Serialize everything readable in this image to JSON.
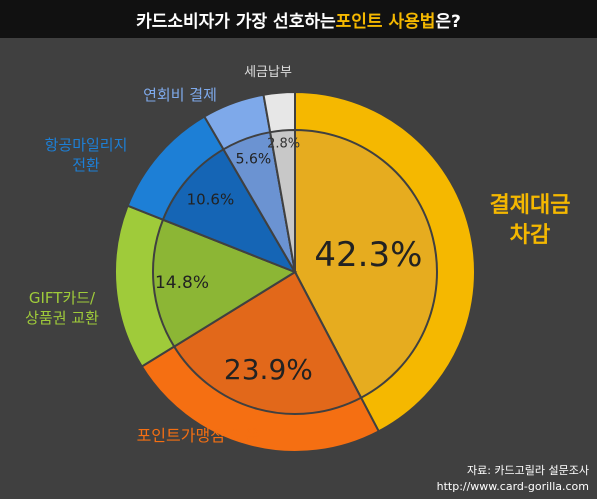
{
  "title": {
    "prefix": "카드소비자가 가장 선호하는 ",
    "highlight": "포인트 사용법",
    "suffix": "은?"
  },
  "source": {
    "line1": "자료: 카드고릴라 설문조사",
    "line2": "http://www.card-gorilla.com"
  },
  "chart_data": {
    "type": "pie",
    "slices": [
      {
        "label": "결제대금 차감",
        "label_lines": [
          "결제대금",
          "차감"
        ],
        "value": 42.3,
        "value_text": "42.3%",
        "color": "#f5b800",
        "inner_color": "#e6ac1f"
      },
      {
        "label": "포인트가맹점 이용",
        "label_lines": [
          "포인트가맹점 이용"
        ],
        "value": 23.9,
        "value_text": "23.9%",
        "color": "#f56f12",
        "inner_color": "#e2681a"
      },
      {
        "label": "GIFT카드/상품권 교환",
        "label_lines": [
          "GIFT카드/",
          "상품권 교환"
        ],
        "value": 14.8,
        "value_text": "14.8%",
        "color": "#9fcb3a",
        "inner_color": "#8cb635"
      },
      {
        "label": "항공마일리지 전환",
        "label_lines": [
          "항공마일리지",
          "전환"
        ],
        "value": 10.6,
        "value_text": "10.6%",
        "color": "#1d7fd6",
        "inner_color": "#1565b5"
      },
      {
        "label": "연회비 결제",
        "label_lines": [
          "연회비 결제"
        ],
        "value": 5.6,
        "value_text": "5.6%",
        "color": "#7ea9ea",
        "inner_color": "#6b93d2"
      },
      {
        "label": "세금납부",
        "label_lines": [
          "세금납부"
        ],
        "value": 2.8,
        "value_text": "2.8%",
        "color": "#e7e7e7",
        "inner_color": "#c8c8c8"
      }
    ],
    "label_colors": {
      "결제대금 차감": "#f5b800",
      "포인트가맹점 이용": "#f56f12",
      "GIFT카드/상품권 교환": "#9fcb3a",
      "항공마일리지 전환": "#1d7fd6",
      "연회비 결제": "#7ea9ea",
      "세금납부": "#dddddd"
    }
  }
}
